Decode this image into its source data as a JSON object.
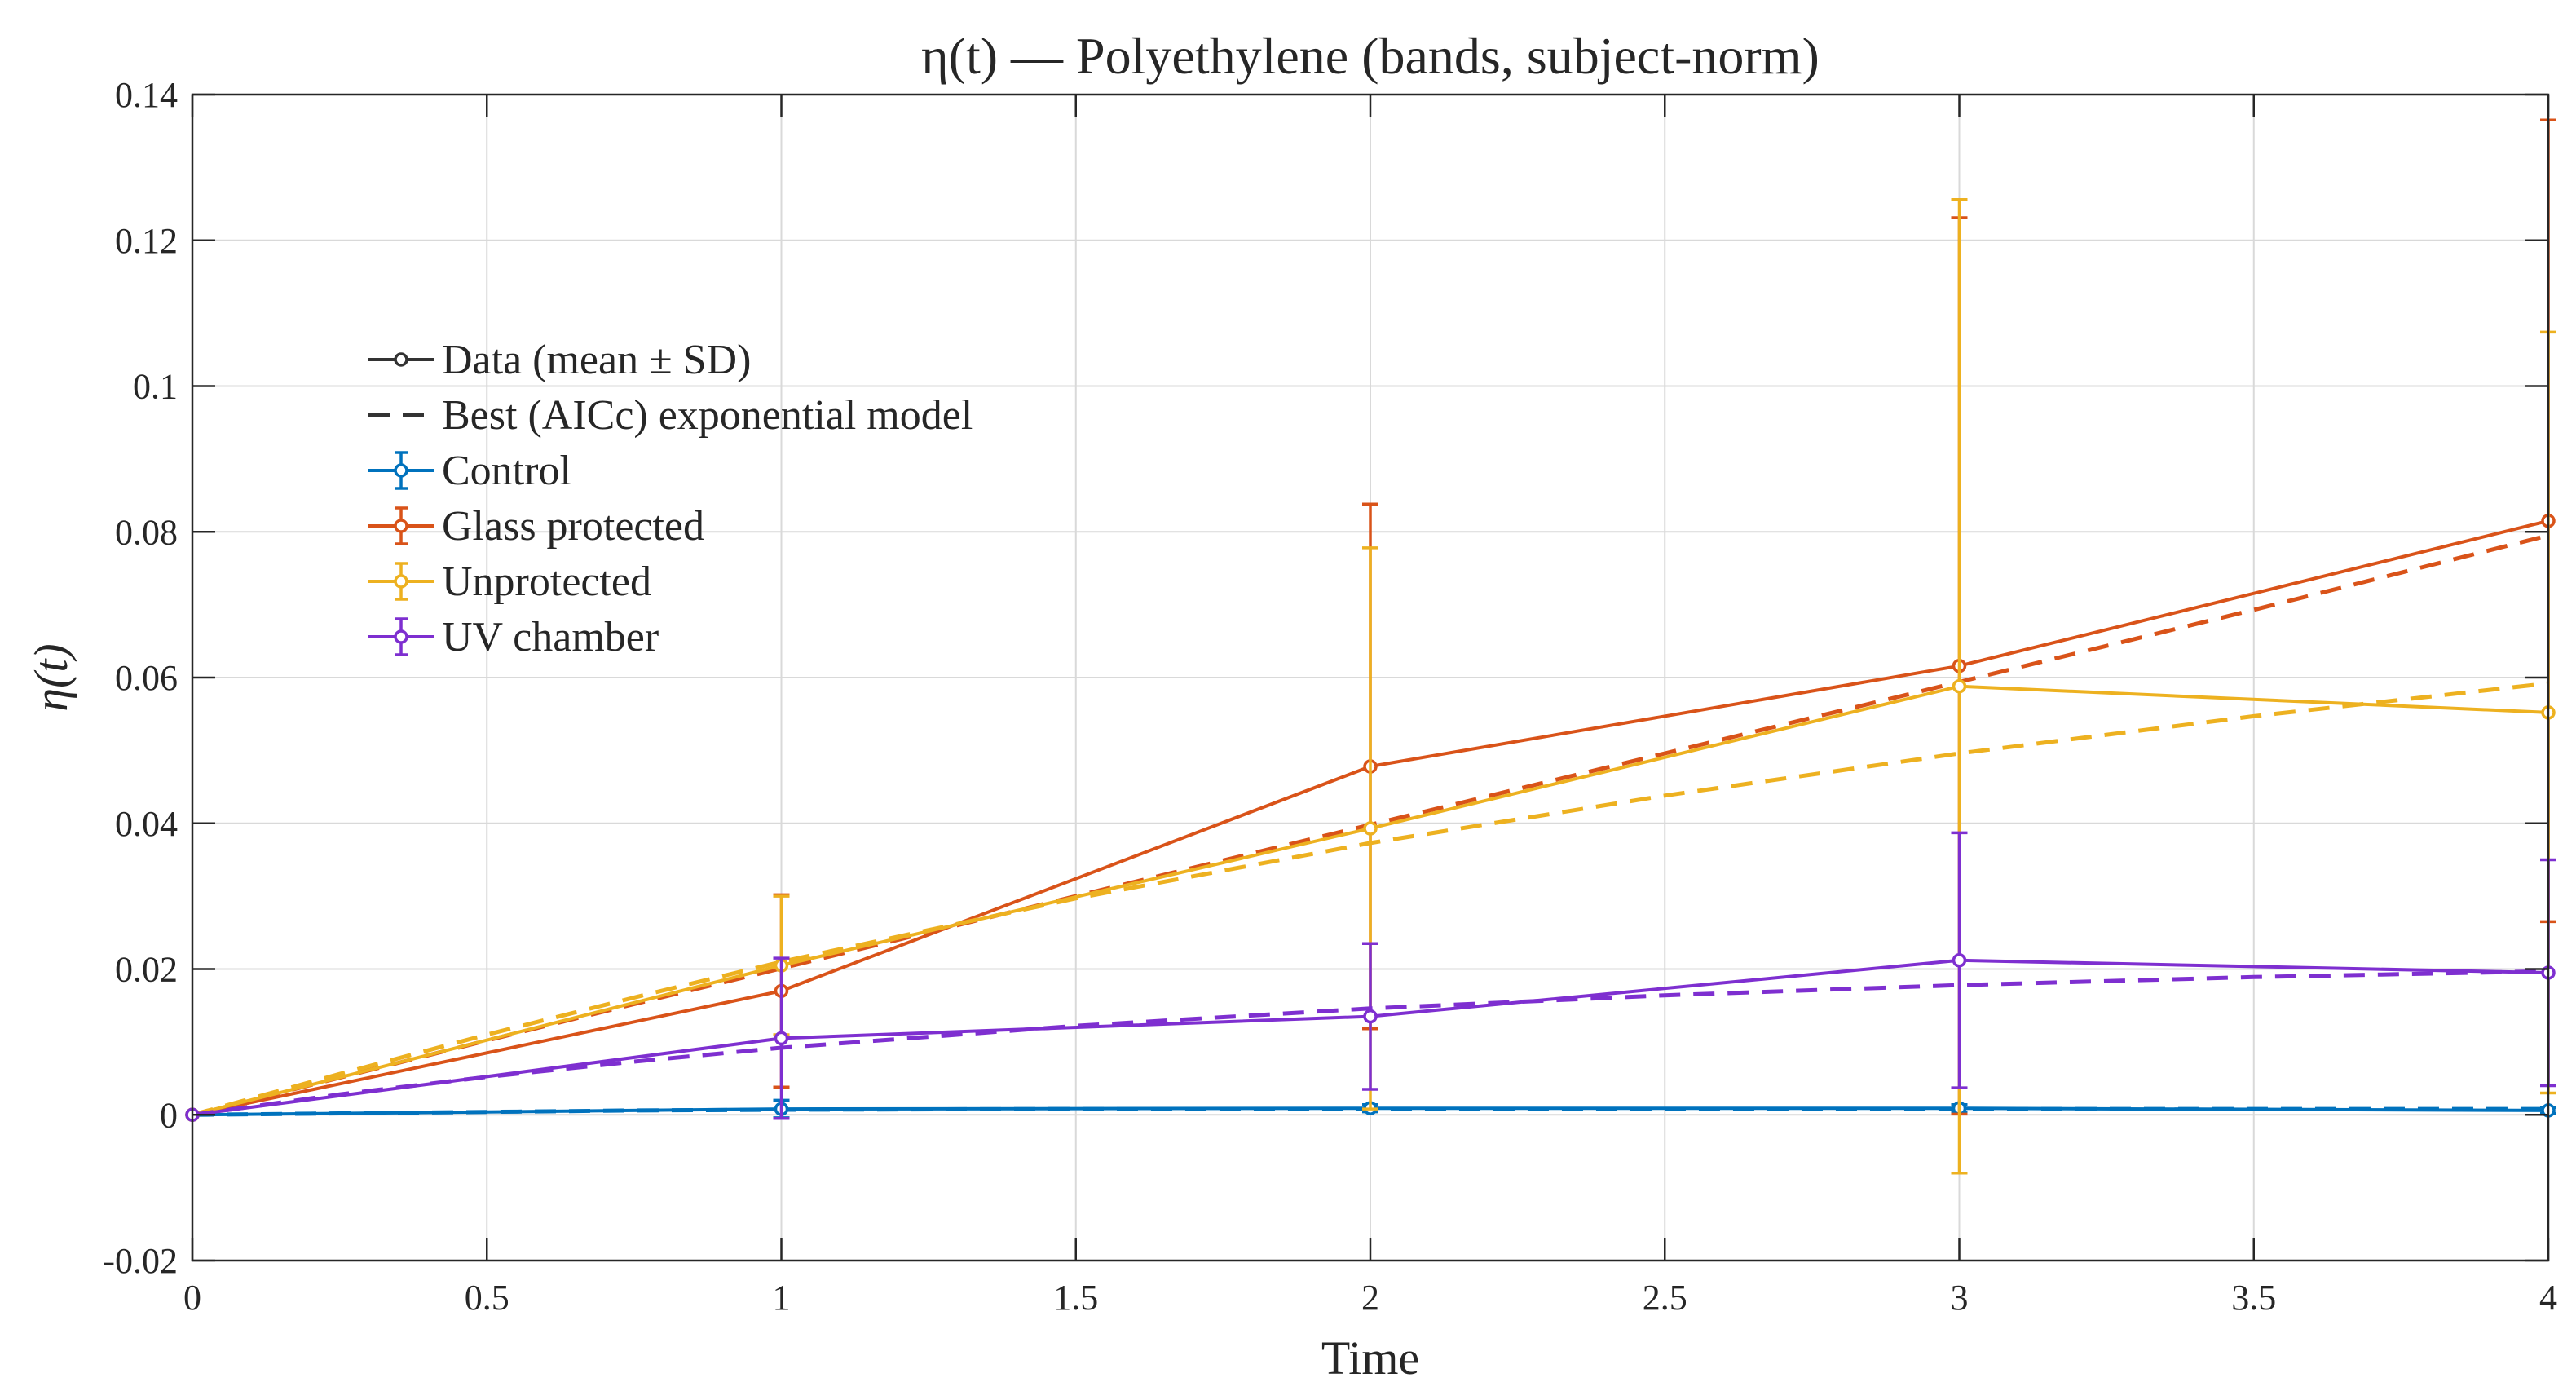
{
  "chart_data": {
    "type": "line",
    "title": "η(t) — Polyethylene (bands, subject-norm)",
    "xlabel": "Time",
    "ylabel": "η(t)",
    "xlim": [
      0,
      4
    ],
    "ylim": [
      -0.02,
      0.14
    ],
    "grid": true,
    "x_ticks": [
      0,
      0.5,
      1,
      1.5,
      2,
      2.5,
      3,
      3.5,
      4
    ],
    "x_tick_labels": [
      "0",
      "0.5",
      "1",
      "1.5",
      "2",
      "2.5",
      "3",
      "3.5",
      "4"
    ],
    "y_ticks": [
      -0.02,
      0,
      0.02,
      0.04,
      0.06,
      0.08,
      0.1,
      0.12,
      0.14
    ],
    "y_tick_labels": [
      "-0.02",
      "0",
      "0.02",
      "0.04",
      "0.06",
      "0.08",
      "0.1",
      "0.12",
      "0.14"
    ],
    "legend_position": "upper-left",
    "legend_style_entries": [
      {
        "label": "Data (mean ± SD)",
        "style": "solid-marker",
        "color": "#333333"
      },
      {
        "label": "Best (AICc) exponential model",
        "style": "dashed",
        "color": "#333333"
      }
    ],
    "x": [
      0,
      1,
      2,
      3,
      4
    ],
    "series": [
      {
        "name": "Control",
        "color": "#0072BD",
        "mean": [
          0,
          0.0008,
          0.0009,
          0.0009,
          0.0006
        ],
        "sd": [
          0,
          0.0012,
          0.0005,
          0.0005,
          0.0004
        ],
        "model_x": [
          0,
          0.25,
          0.5,
          0.75,
          1,
          1.5,
          2,
          2.5,
          3,
          3.5,
          4
        ],
        "model_y": [
          0,
          0.0002,
          0.0004,
          0.0006,
          0.0007,
          0.0008,
          0.0008,
          0.0008,
          0.0008,
          0.0008,
          0.0008
        ]
      },
      {
        "name": "Glass protected",
        "color": "#D95319",
        "mean": [
          0,
          0.017,
          0.0478,
          0.0616,
          0.0815
        ],
        "sd": [
          0,
          0.0132,
          0.036,
          0.0615,
          0.055
        ],
        "model_x": [
          0,
          0.25,
          0.5,
          0.75,
          1,
          1.5,
          2,
          2.5,
          3,
          3.5,
          4
        ],
        "model_y": [
          0,
          0.0051,
          0.0102,
          0.0152,
          0.0201,
          0.03,
          0.0398,
          0.0496,
          0.0594,
          0.0693,
          0.0795
        ]
      },
      {
        "name": "Unprotected",
        "color": "#EDB120",
        "mean": [
          0,
          0.0205,
          0.0393,
          0.0588,
          0.0552
        ],
        "sd": [
          0,
          0.0095,
          0.0385,
          0.0668,
          0.0522
        ],
        "model_x": [
          0,
          0.25,
          0.5,
          0.75,
          1,
          1.5,
          2,
          2.5,
          3,
          3.5,
          4
        ],
        "model_y": [
          0,
          0.0056,
          0.011,
          0.0161,
          0.021,
          0.0297,
          0.0373,
          0.0438,
          0.0496,
          0.0547,
          0.0592
        ]
      },
      {
        "name": "UV chamber",
        "color": "#7E2FD0",
        "mean": [
          0,
          0.0105,
          0.0135,
          0.0212,
          0.0195
        ],
        "sd": [
          0,
          0.011,
          0.01,
          0.0175,
          0.0155
        ],
        "model_x": [
          0,
          0.25,
          0.5,
          0.75,
          1,
          1.5,
          2,
          2.5,
          3,
          3.5,
          4
        ],
        "model_y": [
          0,
          0.0028,
          0.0052,
          0.0073,
          0.0092,
          0.0122,
          0.0146,
          0.0164,
          0.0178,
          0.0189,
          0.0197
        ]
      }
    ]
  }
}
